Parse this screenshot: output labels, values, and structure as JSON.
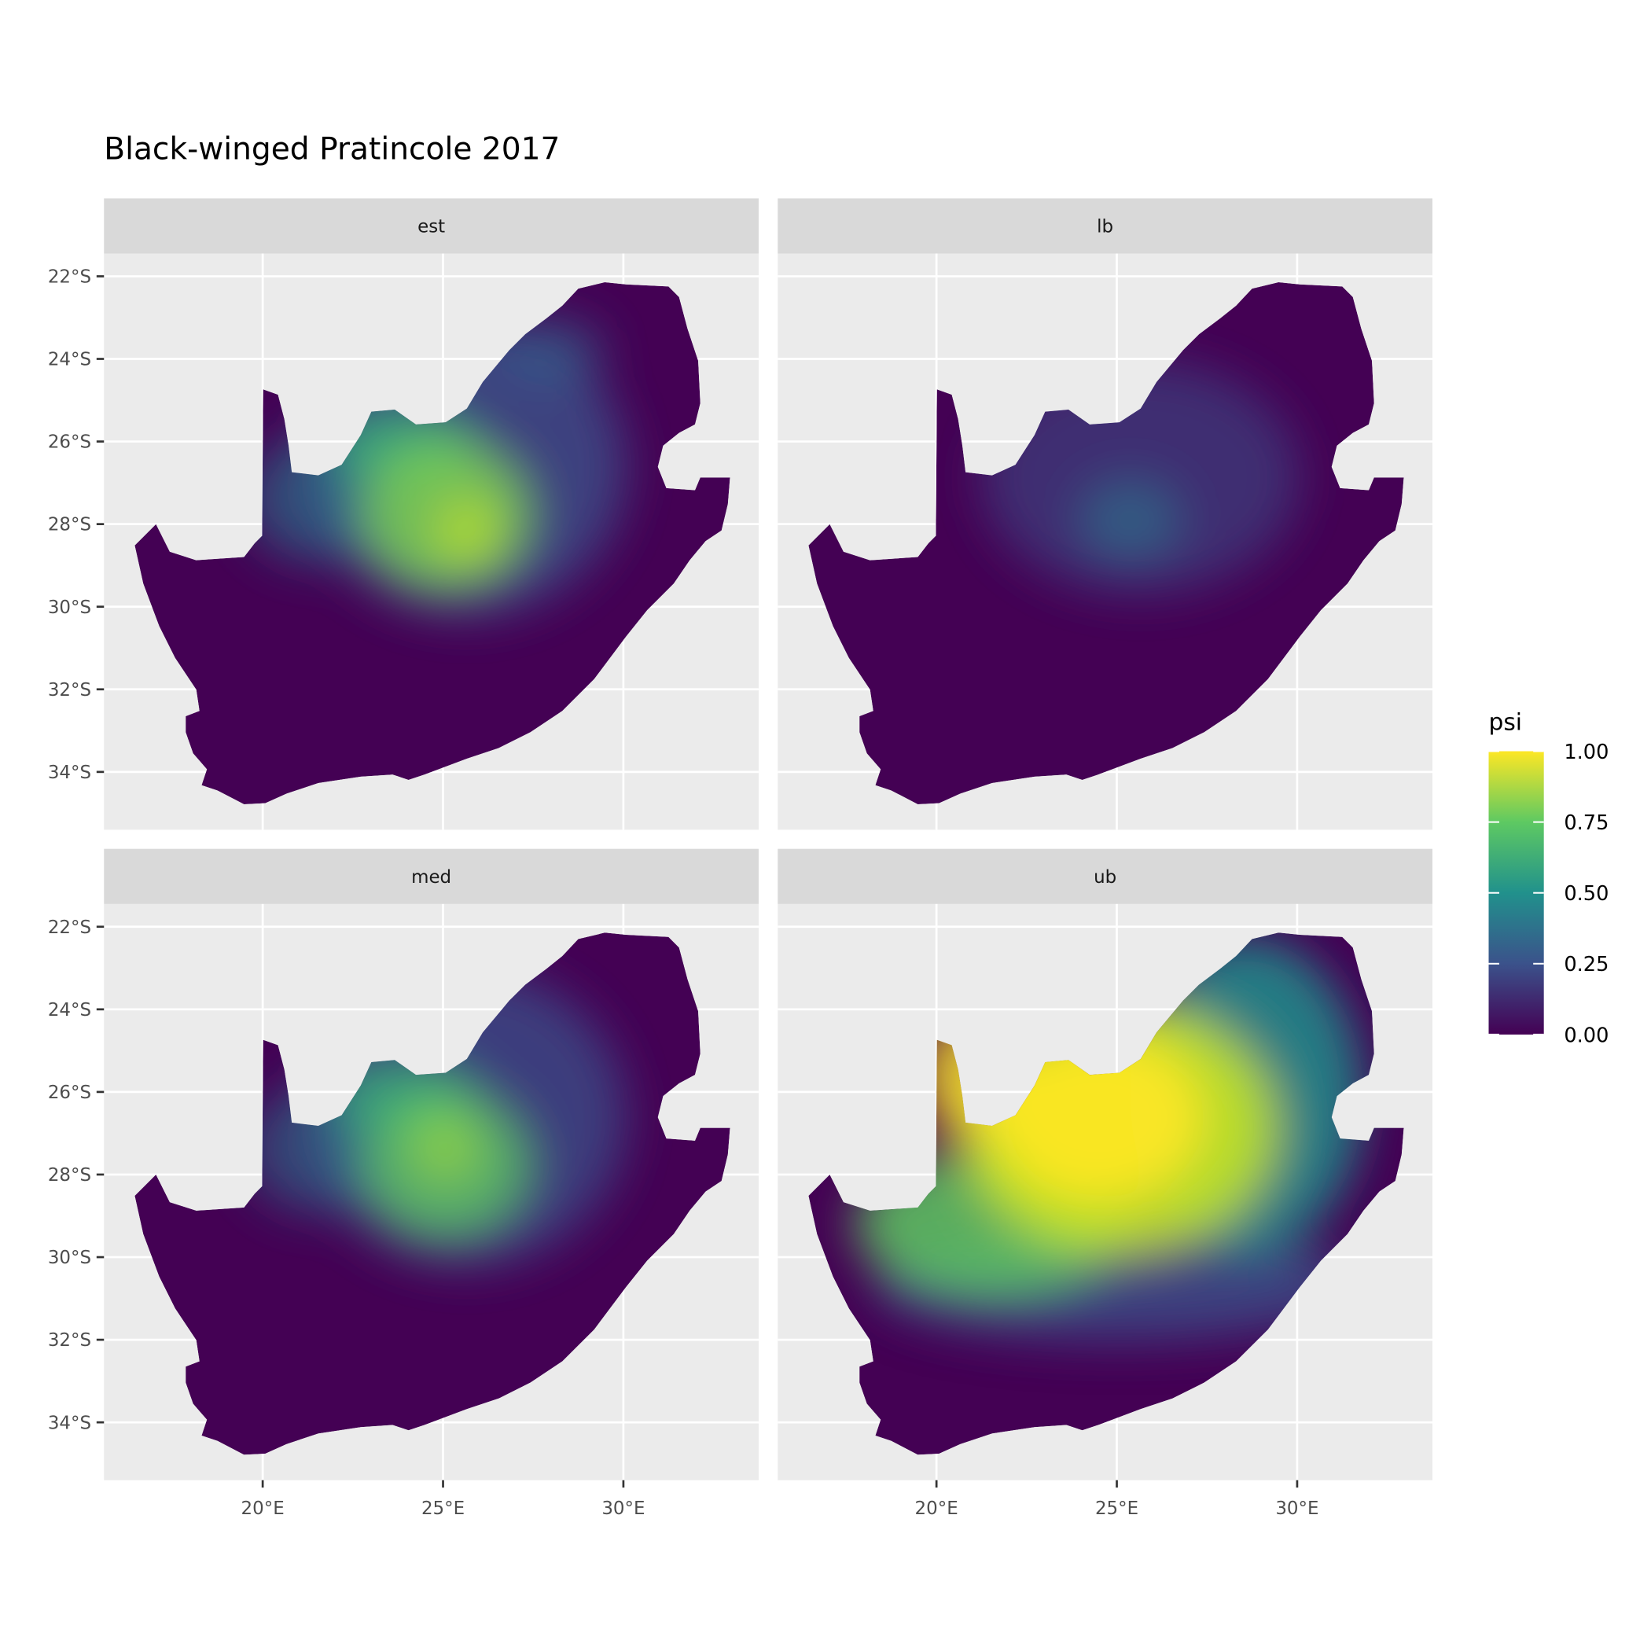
{
  "chart_data": {
    "type": "raster-map",
    "title": "Black-winged Pratincole 2017",
    "facets": [
      "est",
      "lb",
      "med",
      "ub"
    ],
    "xlim": [
      15.6,
      33.75
    ],
    "ylim": [
      -35.4,
      -21.45
    ],
    "xticks": [
      {
        "value": 20,
        "label": "20°E"
      },
      {
        "value": 25,
        "label": "25°E"
      },
      {
        "value": 30,
        "label": "30°E"
      }
    ],
    "yticks": [
      {
        "value": -22,
        "label": "22°S"
      },
      {
        "value": -24,
        "label": "24°S"
      },
      {
        "value": -26,
        "label": "26°S"
      },
      {
        "value": -28,
        "label": "28°S"
      },
      {
        "value": -30,
        "label": "30°S"
      },
      {
        "value": -32,
        "label": "32°S"
      },
      {
        "value": -34,
        "label": "34°S"
      }
    ],
    "grid": true,
    "legend": {
      "title": "psi",
      "lim": [
        0,
        1
      ],
      "ticks": [
        {
          "value": 0,
          "label": "0.00"
        },
        {
          "value": 0.25,
          "label": "0.25"
        },
        {
          "value": 0.5,
          "label": "0.50"
        },
        {
          "value": 0.75,
          "label": "0.75"
        },
        {
          "value": 1,
          "label": "1.00"
        }
      ],
      "colors": [
        "#440154",
        "#3b528b",
        "#21918c",
        "#5ec962",
        "#fde725"
      ]
    }
  }
}
